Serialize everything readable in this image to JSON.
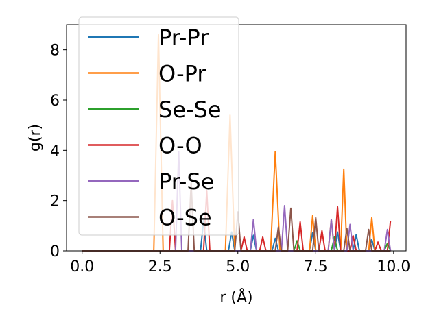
{
  "chart_data": {
    "type": "line",
    "xlabel": "r (Å)",
    "ylabel": "g(r)",
    "xlim": [
      -0.5,
      10.4
    ],
    "ylim": [
      0,
      9.0
    ],
    "xticks": [
      0.0,
      2.5,
      5.0,
      7.5,
      10.0
    ],
    "xtick_labels": [
      "0.0",
      "2.5",
      "5.0",
      "7.5",
      "10.0"
    ],
    "yticks": [
      0,
      2,
      4,
      6,
      8
    ],
    "ytick_labels": [
      "0",
      "2",
      "4",
      "6",
      "8"
    ],
    "grid": false,
    "legend_position": "top-left",
    "series": [
      {
        "name": "Pr-Pr",
        "color": "#1f77b4",
        "x": [
          0,
          3.8,
          3.9,
          4.0,
          4.7,
          4.8,
          4.9,
          5.4,
          5.5,
          5.6,
          6.1,
          6.2,
          6.3,
          7.3,
          7.4,
          7.5,
          8.1,
          8.2,
          8.3,
          8.7,
          8.8,
          8.9,
          9.2,
          9.3,
          9.4,
          9.9
        ],
        "y": [
          0,
          0,
          1.2,
          0,
          0,
          0.75,
          0,
          0,
          0.62,
          0,
          0,
          0.5,
          0,
          0,
          0.72,
          0,
          0,
          0.75,
          0,
          0,
          0.65,
          0,
          0,
          0.45,
          0,
          0
        ]
      },
      {
        "name": "O-Pr",
        "color": "#ff7f0e",
        "x": [
          0,
          2.3,
          2.45,
          2.6,
          4.6,
          4.75,
          4.9,
          6.05,
          6.2,
          6.35,
          7.3,
          7.4,
          7.5,
          7.9,
          8.0,
          8.1,
          8.3,
          8.4,
          8.5,
          9.2,
          9.3,
          9.4,
          9.9
        ],
        "y": [
          0,
          0,
          8.6,
          0,
          0,
          5.4,
          0,
          0,
          3.95,
          0,
          0,
          1.4,
          0,
          0,
          1.25,
          0,
          0,
          3.25,
          0,
          0,
          1.32,
          0,
          0
        ]
      },
      {
        "name": "Se-Se",
        "color": "#2ca02c",
        "x": [
          0,
          6.8,
          6.9,
          7.0,
          8.0,
          8.1,
          8.2,
          9.7,
          9.8,
          9.9
        ],
        "y": [
          0,
          0,
          0.4,
          0,
          0,
          0.55,
          0,
          0,
          0.3,
          0
        ]
      },
      {
        "name": "O-O",
        "color": "#d62728",
        "x": [
          0,
          2.8,
          2.9,
          3.0,
          3.9,
          4.0,
          4.1,
          5.1,
          5.2,
          5.3,
          5.7,
          5.8,
          5.9,
          6.9,
          7.0,
          7.1,
          7.6,
          7.7,
          7.8,
          8.1,
          8.2,
          8.3,
          8.6,
          8.7,
          8.8,
          9.4,
          9.5,
          9.6,
          9.8,
          9.9
        ],
        "y": [
          0,
          0,
          2.0,
          0,
          0,
          2.4,
          0,
          0,
          0.55,
          0,
          0,
          0.55,
          0,
          0,
          1.15,
          0,
          0,
          0.8,
          0,
          0,
          1.75,
          0,
          0,
          0.6,
          0,
          0,
          0.35,
          0,
          0,
          1.2
        ]
      },
      {
        "name": "Pr-Se",
        "color": "#9467bd",
        "x": [
          0,
          3.0,
          3.1,
          3.2,
          5.4,
          5.5,
          5.6,
          6.4,
          6.5,
          6.6,
          7.9,
          8.0,
          8.1,
          8.5,
          8.6,
          8.7,
          9.7,
          9.8,
          9.9
        ],
        "y": [
          0,
          0,
          3.95,
          0,
          0,
          1.25,
          0,
          0,
          1.8,
          0,
          0,
          1.25,
          0,
          0,
          1.05,
          0,
          0,
          0.85,
          0
        ]
      },
      {
        "name": "O-Se",
        "color": "#8c564b",
        "x": [
          0,
          3.4,
          3.5,
          3.6,
          4.9,
          5.0,
          5.1,
          6.2,
          6.3,
          6.4,
          6.6,
          6.7,
          6.8,
          7.4,
          7.5,
          7.6,
          8.4,
          8.5,
          8.6,
          9.1,
          9.2,
          9.3,
          9.9
        ],
        "y": [
          0,
          0,
          2.7,
          0,
          0,
          1.55,
          0,
          0,
          0.95,
          0,
          0,
          1.7,
          0,
          0,
          1.32,
          0,
          0,
          0.9,
          0,
          0,
          0.85,
          0,
          0
        ]
      }
    ]
  }
}
